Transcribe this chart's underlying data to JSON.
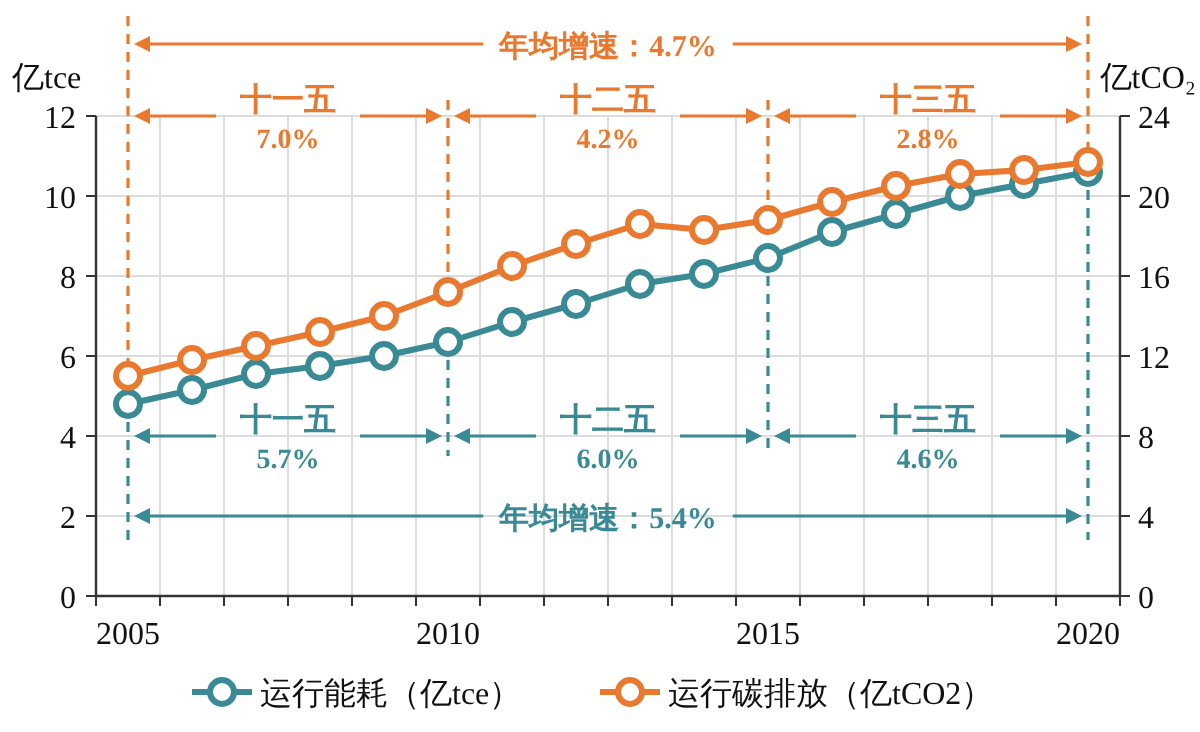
{
  "chart_data": {
    "type": "line",
    "categories": [
      "2005",
      null,
      null,
      null,
      null,
      "2010",
      null,
      null,
      null,
      null,
      "2015",
      null,
      null,
      null,
      null,
      "2020"
    ],
    "series": [
      {
        "name": "运行能耗（亿tce）",
        "color": "#3a8a96",
        "values": [
          4.8,
          5.15,
          5.55,
          5.75,
          6.0,
          6.35,
          6.85,
          7.3,
          7.8,
          8.05,
          8.45,
          9.1,
          9.55,
          10.0,
          10.3,
          10.6
        ]
      },
      {
        "name": "运行碳排放（亿tCO2）",
        "color": "#e8792f",
        "axis": "y2",
        "values": [
          11.0,
          11.8,
          12.5,
          13.2,
          14.0,
          15.2,
          16.5,
          17.6,
          18.6,
          18.3,
          18.8,
          19.7,
          20.5,
          21.1,
          21.3,
          21.7
        ]
      }
    ],
    "ylabel": "亿tce",
    "y2label": "亿tCO₂",
    "ylim": [
      0,
      12
    ],
    "yticks": [
      0,
      2,
      4,
      6,
      8,
      10,
      12
    ],
    "y2lim": [
      0,
      24
    ],
    "y2ticks": [
      0,
      4,
      8,
      12,
      16,
      20,
      24
    ],
    "ref_lines": [
      {
        "axis": "x",
        "value": "2005",
        "color": "#e8792f",
        "line_style": "dashed"
      },
      {
        "axis": "x",
        "value": "2010",
        "color": "#e8792f",
        "line_style": "dashed"
      },
      {
        "axis": "x",
        "value": "2015",
        "color": "#e8792f",
        "line_style": "dashed"
      },
      {
        "axis": "x",
        "value": "2020",
        "color": "#e8792f",
        "line_style": "dashed"
      },
      {
        "axis": "x",
        "value": "2005",
        "color": "#3a8a96",
        "line_style": "dashed"
      },
      {
        "axis": "x",
        "value": "2010",
        "color": "#3a8a96",
        "line_style": "dashed"
      },
      {
        "axis": "x",
        "value": "2015",
        "color": "#3a8a96",
        "line_style": "dashed"
      },
      {
        "axis": "x",
        "value": "2020",
        "color": "#3a8a96",
        "line_style": "dashed"
      }
    ],
    "annotations": [
      "年均增速：4.7%",
      "十一五\n7.0%",
      "十二五\n4.2%",
      "十三五\n2.8%",
      "十一五\n5.7%",
      "十二五\n6.0%",
      "十三五\n4.6%",
      "年均增速：5.4%"
    ],
    "grid": true,
    "legend": "bottom",
    "marker": "circle",
    "line_style": "solid"
  }
}
